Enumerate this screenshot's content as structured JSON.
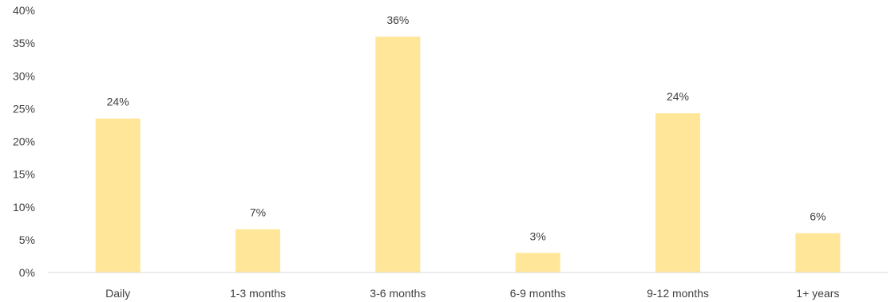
{
  "chart_data": {
    "type": "bar",
    "title": "",
    "xlabel": "",
    "ylabel": "",
    "categories": [
      "Daily",
      "1-3 months",
      "3-6 months",
      "6-9 months",
      "9-12 months",
      "1+ years"
    ],
    "values": [
      23.5,
      6.6,
      36.0,
      3.0,
      24.3,
      6.0
    ],
    "data_labels": [
      "24%",
      "7%",
      "36%",
      "3%",
      "24%",
      "6%"
    ],
    "ylim": [
      0,
      40
    ],
    "yticks": [
      0,
      5,
      10,
      15,
      20,
      25,
      30,
      35,
      40
    ],
    "ytick_labels": [
      "0%",
      "5%",
      "10%",
      "15%",
      "20%",
      "25%",
      "30%",
      "35%",
      "40%"
    ],
    "grid": false,
    "legend": "none",
    "bar_color": "#FFE699",
    "axis_color": "#D9D9D9",
    "text_color": "#404040"
  }
}
